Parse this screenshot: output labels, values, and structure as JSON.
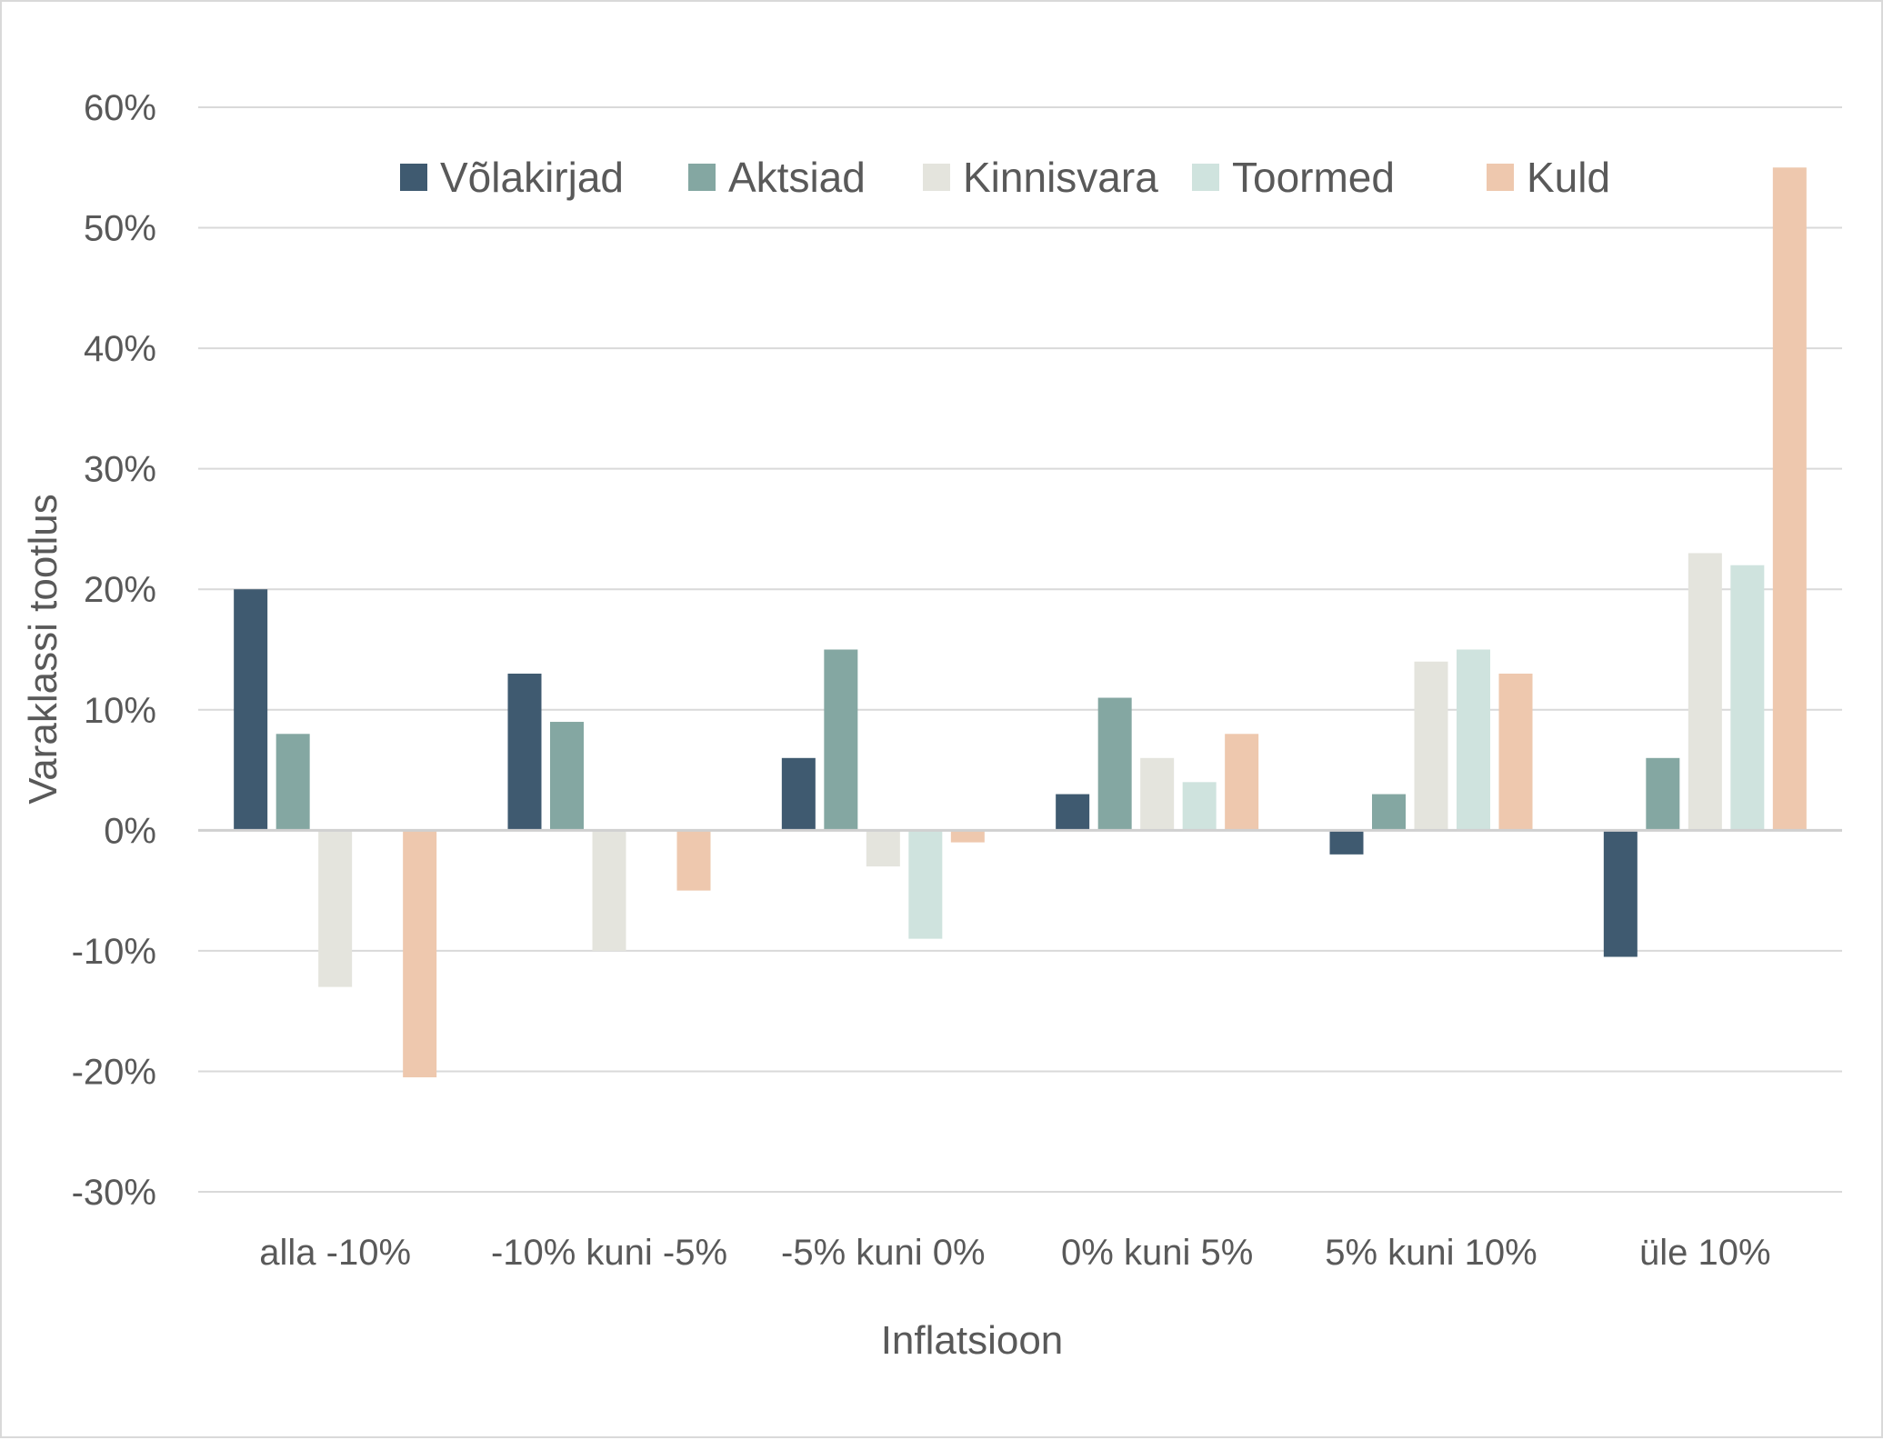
{
  "chart_data": {
    "type": "bar",
    "title": "",
    "xlabel": "Inflatsioon",
    "ylabel": "Varaklassi tootlus",
    "categories": [
      "alla -10%",
      "-10% kuni -5%",
      "-5% kuni 0%",
      "0% kuni 5%",
      "5% kuni 10%",
      "üle 10%"
    ],
    "series": [
      {
        "name": "Võlakirjad",
        "color": "#3f5a70",
        "values": [
          20,
          13,
          6,
          3,
          -2,
          -10.5
        ]
      },
      {
        "name": "Aktsiad",
        "color": "#84a7a2",
        "values": [
          8,
          9,
          15,
          11,
          3,
          6
        ]
      },
      {
        "name": "Kinnisvara",
        "color": "#e4e4dd",
        "values": [
          -13,
          -10,
          -3,
          6,
          14,
          23
        ]
      },
      {
        "name": "Toormed",
        "color": "#cfe3de",
        "values": [
          0,
          0,
          -9,
          4,
          15,
          22
        ]
      },
      {
        "name": "Kuld",
        "color": "#eec8ae",
        "values": [
          -20.5,
          -5,
          -1,
          8,
          13,
          55
        ]
      }
    ],
    "ylim": [
      -30,
      60
    ],
    "ytick_step": 10,
    "ytick_format": "percent",
    "grid": true,
    "legend_position": "top"
  }
}
